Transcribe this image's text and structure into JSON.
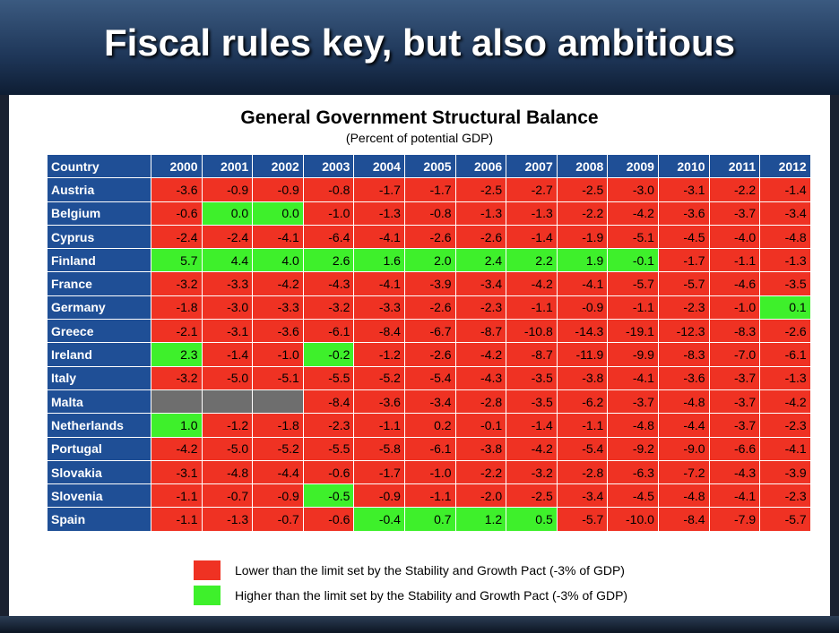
{
  "header": {
    "title": "Fiscal rules key, but also ambitious"
  },
  "table": {
    "title": "General Government Structural Balance",
    "subtitle": "(Percent of potential GDP)",
    "palette": {
      "red": "#ef3223",
      "green": "#3ef02b",
      "gray": "#6e6e6e"
    },
    "columns": [
      "Country",
      "2000",
      "2001",
      "2002",
      "2003",
      "2004",
      "2005",
      "2006",
      "2007",
      "2008",
      "2009",
      "2010",
      "2011",
      "2012"
    ],
    "rows": [
      {
        "country": "Austria",
        "values": [
          "-3.6",
          "-0.9",
          "-0.9",
          "-0.8",
          "-1.7",
          "-1.7",
          "-2.5",
          "-2.7",
          "-2.5",
          "-3.0",
          "-3.1",
          "-2.2",
          "-1.4"
        ],
        "colors": [
          "red",
          "red",
          "red",
          "red",
          "red",
          "red",
          "red",
          "red",
          "red",
          "red",
          "red",
          "red",
          "red"
        ]
      },
      {
        "country": "Belgium",
        "values": [
          "-0.6",
          "0.0",
          "0.0",
          "-1.0",
          "-1.3",
          "-0.8",
          "-1.3",
          "-1.3",
          "-2.2",
          "-4.2",
          "-3.6",
          "-3.7",
          "-3.4"
        ],
        "colors": [
          "red",
          "green",
          "green",
          "red",
          "red",
          "red",
          "red",
          "red",
          "red",
          "red",
          "red",
          "red",
          "red"
        ]
      },
      {
        "country": "Cyprus",
        "values": [
          "-2.4",
          "-2.4",
          "-4.1",
          "-6.4",
          "-4.1",
          "-2.6",
          "-2.6",
          "-1.4",
          "-1.9",
          "-5.1",
          "-4.5",
          "-4.0",
          "-4.8"
        ],
        "colors": [
          "red",
          "red",
          "red",
          "red",
          "red",
          "red",
          "red",
          "red",
          "red",
          "red",
          "red",
          "red",
          "red"
        ]
      },
      {
        "country": "Finland",
        "values": [
          "5.7",
          "4.4",
          "4.0",
          "2.6",
          "1.6",
          "2.0",
          "2.4",
          "2.2",
          "1.9",
          "-0.1",
          "-1.7",
          "-1.1",
          "-1.3"
        ],
        "colors": [
          "green",
          "green",
          "green",
          "green",
          "green",
          "green",
          "green",
          "green",
          "green",
          "green",
          "red",
          "red",
          "red"
        ]
      },
      {
        "country": "France",
        "values": [
          "-3.2",
          "-3.3",
          "-4.2",
          "-4.3",
          "-4.1",
          "-3.9",
          "-3.4",
          "-4.2",
          "-4.1",
          "-5.7",
          "-5.7",
          "-4.6",
          "-3.5"
        ],
        "colors": [
          "red",
          "red",
          "red",
          "red",
          "red",
          "red",
          "red",
          "red",
          "red",
          "red",
          "red",
          "red",
          "red"
        ]
      },
      {
        "country": "Germany",
        "values": [
          "-1.8",
          "-3.0",
          "-3.3",
          "-3.2",
          "-3.3",
          "-2.6",
          "-2.3",
          "-1.1",
          "-0.9",
          "-1.1",
          "-2.3",
          "-1.0",
          "0.1"
        ],
        "colors": [
          "red",
          "red",
          "red",
          "red",
          "red",
          "red",
          "red",
          "red",
          "red",
          "red",
          "red",
          "red",
          "green"
        ]
      },
      {
        "country": "Greece",
        "values": [
          "-2.1",
          "-3.1",
          "-3.6",
          "-6.1",
          "-8.4",
          "-6.7",
          "-8.7",
          "-10.8",
          "-14.3",
          "-19.1",
          "-12.3",
          "-8.3",
          "-2.6"
        ],
        "colors": [
          "red",
          "red",
          "red",
          "red",
          "red",
          "red",
          "red",
          "red",
          "red",
          "red",
          "red",
          "red",
          "red"
        ]
      },
      {
        "country": "Ireland",
        "values": [
          "2.3",
          "-1.4",
          "-1.0",
          "-0.2",
          "-1.2",
          "-2.6",
          "-4.2",
          "-8.7",
          "-11.9",
          "-9.9",
          "-8.3",
          "-7.0",
          "-6.1"
        ],
        "colors": [
          "green",
          "red",
          "red",
          "green",
          "red",
          "red",
          "red",
          "red",
          "red",
          "red",
          "red",
          "red",
          "red"
        ]
      },
      {
        "country": "Italy",
        "values": [
          "-3.2",
          "-5.0",
          "-5.1",
          "-5.5",
          "-5.2",
          "-5.4",
          "-4.3",
          "-3.5",
          "-3.8",
          "-4.1",
          "-3.6",
          "-3.7",
          "-1.3"
        ],
        "colors": [
          "red",
          "red",
          "red",
          "red",
          "red",
          "red",
          "red",
          "red",
          "red",
          "red",
          "red",
          "red",
          "red"
        ]
      },
      {
        "country": "Malta",
        "values": [
          null,
          null,
          null,
          "-8.4",
          "-3.6",
          "-3.4",
          "-2.8",
          "-3.5",
          "-6.2",
          "-3.7",
          "-4.8",
          "-3.7",
          "-4.2"
        ],
        "colors": [
          "gray",
          "gray",
          "gray",
          "red",
          "red",
          "red",
          "red",
          "red",
          "red",
          "red",
          "red",
          "red",
          "red"
        ]
      },
      {
        "country": "Netherlands",
        "values": [
          "1.0",
          "-1.2",
          "-1.8",
          "-2.3",
          "-1.1",
          "0.2",
          "-0.1",
          "-1.4",
          "-1.1",
          "-4.8",
          "-4.4",
          "-3.7",
          "-2.3"
        ],
        "colors": [
          "green",
          "red",
          "red",
          "red",
          "red",
          "red",
          "red",
          "red",
          "red",
          "red",
          "red",
          "red",
          "red"
        ]
      },
      {
        "country": "Portugal",
        "values": [
          "-4.2",
          "-5.0",
          "-5.2",
          "-5.5",
          "-5.8",
          "-6.1",
          "-3.8",
          "-4.2",
          "-5.4",
          "-9.2",
          "-9.0",
          "-6.6",
          "-4.1"
        ],
        "colors": [
          "red",
          "red",
          "red",
          "red",
          "red",
          "red",
          "red",
          "red",
          "red",
          "red",
          "red",
          "red",
          "red"
        ]
      },
      {
        "country": "Slovakia",
        "values": [
          "-3.1",
          "-4.8",
          "-4.4",
          "-0.6",
          "-1.7",
          "-1.0",
          "-2.2",
          "-3.2",
          "-2.8",
          "-6.3",
          "-7.2",
          "-4.3",
          "-3.9"
        ],
        "colors": [
          "red",
          "red",
          "red",
          "red",
          "red",
          "red",
          "red",
          "red",
          "red",
          "red",
          "red",
          "red",
          "red"
        ]
      },
      {
        "country": "Slovenia",
        "values": [
          "-1.1",
          "-0.7",
          "-0.9",
          "-0.5",
          "-0.9",
          "-1.1",
          "-2.0",
          "-2.5",
          "-3.4",
          "-4.5",
          "-4.8",
          "-4.1",
          "-2.3"
        ],
        "colors": [
          "red",
          "red",
          "red",
          "green",
          "red",
          "red",
          "red",
          "red",
          "red",
          "red",
          "red",
          "red",
          "red"
        ]
      },
      {
        "country": "Spain",
        "values": [
          "-1.1",
          "-1.3",
          "-0.7",
          "-0.6",
          "-0.4",
          "0.7",
          "1.2",
          "0.5",
          "-5.7",
          "-10.0",
          "-8.4",
          "-7.9",
          "-5.7"
        ],
        "colors": [
          "red",
          "red",
          "red",
          "red",
          "green",
          "green",
          "green",
          "green",
          "red",
          "red",
          "red",
          "red",
          "red"
        ]
      }
    ],
    "legend": [
      {
        "color": "red",
        "label": "Lower than the limit set by the Stability and Growth Pact (-3% of GDP)"
      },
      {
        "color": "green",
        "label": "Higher than the limit set by the Stability and Growth Pact (-3% of GDP)"
      }
    ]
  }
}
